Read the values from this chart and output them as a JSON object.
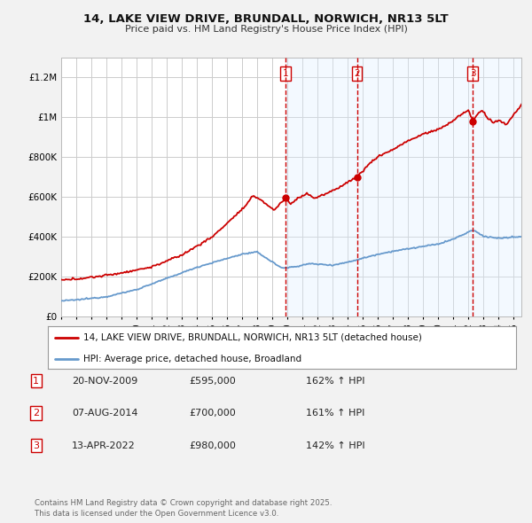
{
  "title": "14, LAKE VIEW DRIVE, BRUNDALL, NORWICH, NR13 5LT",
  "subtitle": "Price paid vs. HM Land Registry's House Price Index (HPI)",
  "background_color": "#f2f2f2",
  "plot_bg_color": "#ffffff",
  "grid_color": "#cccccc",
  "hpi_line_color": "#6699cc",
  "price_line_color": "#cc0000",
  "ylim": [
    0,
    1300000
  ],
  "yticks": [
    0,
    200000,
    400000,
    600000,
    800000,
    1000000,
    1200000
  ],
  "ytick_labels": [
    "£0",
    "£200K",
    "£400K",
    "£600K",
    "£800K",
    "£1M",
    "£1.2M"
  ],
  "sale_dates": [
    2009.89,
    2014.6,
    2022.28
  ],
  "sale_prices": [
    595000,
    700000,
    980000
  ],
  "sale_labels": [
    "1",
    "2",
    "3"
  ],
  "vline_color": "#cc0000",
  "shade_color": "#ddeeff",
  "legend_entries": [
    "14, LAKE VIEW DRIVE, BRUNDALL, NORWICH, NR13 5LT (detached house)",
    "HPI: Average price, detached house, Broadland"
  ],
  "table_rows": [
    [
      "1",
      "20-NOV-2009",
      "£595,000",
      "162% ↑ HPI"
    ],
    [
      "2",
      "07-AUG-2014",
      "£700,000",
      "161% ↑ HPI"
    ],
    [
      "3",
      "13-APR-2022",
      "£980,000",
      "142% ↑ HPI"
    ]
  ],
  "footnote": "Contains HM Land Registry data © Crown copyright and database right 2025.\nThis data is licensed under the Open Government Licence v3.0.",
  "xmin": 1995,
  "xmax": 2025.5
}
